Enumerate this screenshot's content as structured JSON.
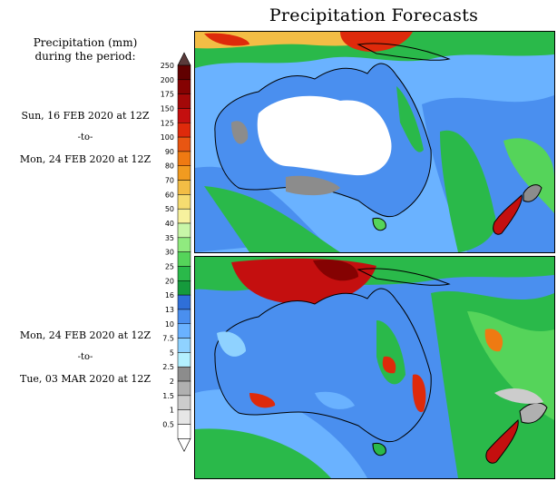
{
  "title": "Precipitation Forecasts",
  "legend": {
    "heading_lines": [
      "Precipitation (mm)",
      "during the period:"
    ],
    "levels": [
      "0.5",
      "1",
      "1.5",
      "2",
      "2.5",
      "5",
      "7.5",
      "10",
      "13",
      "16",
      "20",
      "25",
      "30",
      "35",
      "40",
      "50",
      "60",
      "70",
      "80",
      "90",
      "100",
      "125",
      "150",
      "175",
      "200",
      "250"
    ],
    "colors": [
      "#ffffff",
      "#e6e6e6",
      "#cccccc",
      "#b0b0b0",
      "#8c8c8c",
      "#b3f0ff",
      "#8fd2ff",
      "#6ab2ff",
      "#4a8fef",
      "#2f6fd9",
      "#159a3c",
      "#2ab94a",
      "#55d45a",
      "#90ea7f",
      "#c8f6a8",
      "#f7f19e",
      "#f6dc70",
      "#f3bd45",
      "#f19b20",
      "#ef7a12",
      "#e85612",
      "#de2a0b",
      "#c40f0f",
      "#a30808",
      "#850202",
      "#610000"
    ],
    "arrow_top_color": "#5a3a3a",
    "arrow_bottom_color": "#ffffff"
  },
  "periods": [
    {
      "start": "Sun, 16 FEB 2020 at 12Z",
      "sep": "-to-",
      "end": "Mon, 24 FEB 2020 at 12Z"
    },
    {
      "start": "Mon, 24 FEB 2020 at 12Z",
      "sep": "-to-",
      "end": "Tue, 03 MAR 2020 at 12Z"
    }
  ],
  "maps": [
    {
      "name": "forecast-week-1",
      "region": "Australia",
      "ocean_color": "#6ab2ff",
      "dry_color": "#ffffff"
    },
    {
      "name": "forecast-week-2",
      "region": "Australia",
      "ocean_color": "#4a8fef",
      "dry_color": "#4a8fef"
    }
  ]
}
